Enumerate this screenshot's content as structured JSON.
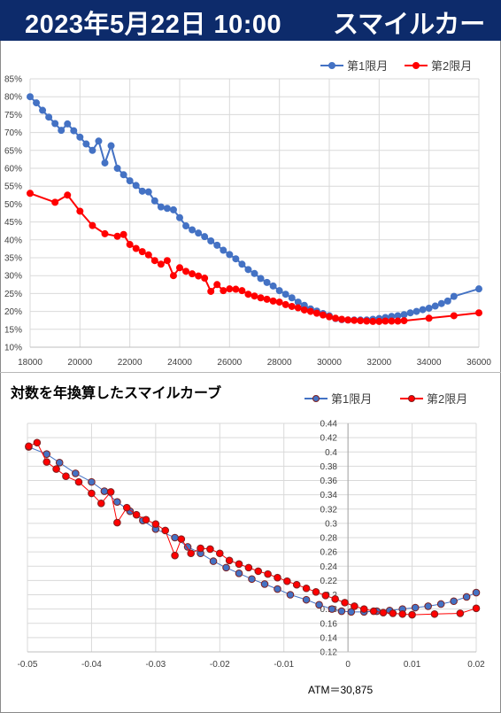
{
  "header": {
    "date_text": "2023年5月22日 10:00",
    "title_text": "スマイルカーブ",
    "bg_color": "#0d2b6b"
  },
  "chart2_title": "対数を年換算したスマイルカーブ",
  "atm_text": "ATM＝30,875",
  "chart_data": [
    {
      "type": "line",
      "title": "",
      "xlabel": "",
      "ylabel": "",
      "xlim": [
        18000,
        36000
      ],
      "ylim": [
        0.1,
        0.85
      ],
      "x_ticks": [
        18000,
        20000,
        22000,
        24000,
        26000,
        28000,
        30000,
        32000,
        34000,
        36000
      ],
      "y_ticks": [
        0.1,
        0.15,
        0.2,
        0.25,
        0.3,
        0.35,
        0.4,
        0.45,
        0.5,
        0.55,
        0.6,
        0.65,
        0.7,
        0.75,
        0.8,
        0.85
      ],
      "x_tick_labels": [
        "18000",
        "20000",
        "22000",
        "24000",
        "26000",
        "28000",
        "30000",
        "32000",
        "34000",
        "36000"
      ],
      "y_tick_labels": [
        "10%",
        "15%",
        "20%",
        "25%",
        "30%",
        "35%",
        "40%",
        "45%",
        "50%",
        "55%",
        "60%",
        "65%",
        "70%",
        "75%",
        "80%",
        "85%"
      ],
      "grid": true,
      "legend_position": "top-right",
      "series": [
        {
          "name": "第1限月",
          "color": "#4472c4",
          "x": [
            18000,
            18250,
            18500,
            18750,
            19000,
            19250,
            19500,
            19750,
            20000,
            20250,
            20500,
            20750,
            21000,
            21250,
            21500,
            21750,
            22000,
            22250,
            22500,
            22750,
            23000,
            23250,
            23500,
            23750,
            24000,
            24250,
            24500,
            24750,
            25000,
            25250,
            25500,
            25750,
            26000,
            26250,
            26500,
            26750,
            27000,
            27250,
            27500,
            27750,
            28000,
            28250,
            28500,
            28750,
            29000,
            29250,
            29500,
            29750,
            30000,
            30250,
            30500,
            30750,
            31000,
            31250,
            31500,
            31750,
            32000,
            32250,
            32500,
            32750,
            33000,
            33250,
            33500,
            33750,
            34000,
            34250,
            34500,
            34750,
            35000,
            36000
          ],
          "y": [
            0.8,
            0.783,
            0.762,
            0.743,
            0.725,
            0.706,
            0.724,
            0.705,
            0.687,
            0.668,
            0.65,
            0.676,
            0.615,
            0.663,
            0.6,
            0.582,
            0.565,
            0.552,
            0.536,
            0.534,
            0.509,
            0.492,
            0.488,
            0.484,
            0.462,
            0.439,
            0.428,
            0.419,
            0.409,
            0.397,
            0.385,
            0.371,
            0.359,
            0.347,
            0.332,
            0.317,
            0.306,
            0.292,
            0.281,
            0.271,
            0.258,
            0.248,
            0.238,
            0.226,
            0.217,
            0.207,
            0.201,
            0.194,
            0.188,
            0.18,
            0.177,
            0.176,
            0.176,
            0.176,
            0.176,
            0.178,
            0.18,
            0.183,
            0.186,
            0.188,
            0.191,
            0.196,
            0.2,
            0.205,
            0.209,
            0.215,
            0.222,
            0.229,
            0.242,
            0.263
          ]
        },
        {
          "name": "第2限月",
          "color": "#ff0000",
          "x": [
            18000,
            19000,
            19500,
            20000,
            20500,
            21000,
            21500,
            21750,
            22000,
            22250,
            22500,
            22750,
            23000,
            23250,
            23500,
            23750,
            24000,
            24250,
            24500,
            24750,
            25000,
            25250,
            25500,
            25750,
            26000,
            26250,
            26500,
            26750,
            27000,
            27250,
            27500,
            27750,
            28000,
            28250,
            28500,
            28750,
            29000,
            29250,
            29500,
            29750,
            30000,
            30250,
            30500,
            30750,
            31000,
            31250,
            31500,
            31750,
            32000,
            32250,
            32500,
            32750,
            33000,
            34000,
            35000,
            36000
          ],
          "y": [
            0.53,
            0.505,
            0.525,
            0.48,
            0.44,
            0.417,
            0.41,
            0.415,
            0.387,
            0.376,
            0.367,
            0.358,
            0.342,
            0.332,
            0.342,
            0.3,
            0.322,
            0.312,
            0.305,
            0.299,
            0.293,
            0.256,
            0.275,
            0.258,
            0.263,
            0.262,
            0.258,
            0.248,
            0.243,
            0.238,
            0.234,
            0.229,
            0.226,
            0.219,
            0.214,
            0.21,
            0.204,
            0.2,
            0.195,
            0.19,
            0.185,
            0.181,
            0.178,
            0.176,
            0.175,
            0.174,
            0.173,
            0.172,
            0.172,
            0.173,
            0.173,
            0.173,
            0.174,
            0.181,
            0.188,
            0.196
          ]
        }
      ]
    },
    {
      "type": "line",
      "title": "対数を年換算したスマイルカーブ",
      "xlabel": "",
      "ylabel": "",
      "xlim": [
        -0.05,
        0.02
      ],
      "ylim": [
        0.12,
        0.44
      ],
      "x_ticks": [
        -0.05,
        -0.04,
        -0.03,
        -0.02,
        -0.01,
        0,
        0.01,
        0.02
      ],
      "y_ticks": [
        0.12,
        0.14,
        0.16,
        0.18,
        0.2,
        0.22,
        0.24,
        0.26,
        0.28,
        0.3,
        0.32,
        0.34,
        0.36,
        0.38,
        0.4,
        0.42,
        0.44
      ],
      "x_tick_labels": [
        "-0.05",
        "-0.04",
        "-0.03",
        "-0.02",
        "-0.01",
        "0",
        "0.01",
        "0.02"
      ],
      "y_tick_labels": [
        "0.12",
        "0.14",
        "0.16",
        "0.18",
        "0.2",
        "0.22",
        "0.24",
        "0.26",
        "0.28",
        "0.3",
        "0.32",
        "0.34",
        "0.36",
        "0.38",
        "0.4",
        "0.42",
        "0.44"
      ],
      "grid": true,
      "legend_position": "top-right",
      "series": [
        {
          "name": "第1限月",
          "color": "#4472c4",
          "x": [
            -0.0498,
            -0.047,
            -0.045,
            -0.0425,
            -0.04,
            -0.038,
            -0.036,
            -0.034,
            -0.032,
            -0.03,
            -0.027,
            -0.025,
            -0.023,
            -0.021,
            -0.019,
            -0.017,
            -0.015,
            -0.013,
            -0.011,
            -0.009,
            -0.0065,
            -0.0045,
            -0.0025,
            -0.001,
            0.0005,
            0.0025,
            0.0045,
            0.0065,
            0.0085,
            0.0105,
            0.0125,
            0.0145,
            0.0165,
            0.0185,
            0.02
          ],
          "y": [
            0.407,
            0.397,
            0.385,
            0.37,
            0.358,
            0.345,
            0.33,
            0.317,
            0.304,
            0.292,
            0.28,
            0.267,
            0.258,
            0.247,
            0.238,
            0.23,
            0.222,
            0.215,
            0.208,
            0.2,
            0.193,
            0.186,
            0.18,
            0.177,
            0.176,
            0.176,
            0.177,
            0.178,
            0.18,
            0.182,
            0.184,
            0.187,
            0.191,
            0.197,
            0.203
          ]
        },
        {
          "name": "第2限月",
          "color": "#ff0000",
          "x": [
            -0.0498,
            -0.0485,
            -0.047,
            -0.0455,
            -0.044,
            -0.042,
            -0.04,
            -0.0385,
            -0.037,
            -0.036,
            -0.0345,
            -0.033,
            -0.0315,
            -0.03,
            -0.0285,
            -0.027,
            -0.026,
            -0.0245,
            -0.023,
            -0.0215,
            -0.02,
            -0.0185,
            -0.017,
            -0.0155,
            -0.014,
            -0.0125,
            -0.011,
            -0.0095,
            -0.008,
            -0.0065,
            -0.005,
            -0.0035,
            -0.002,
            -0.0005,
            0.001,
            0.0025,
            0.004,
            0.0055,
            0.007,
            0.0085,
            0.01,
            0.0135,
            0.0175,
            0.02
          ],
          "y": [
            0.408,
            0.413,
            0.386,
            0.376,
            0.366,
            0.358,
            0.342,
            0.328,
            0.344,
            0.301,
            0.322,
            0.312,
            0.305,
            0.299,
            0.29,
            0.255,
            0.278,
            0.258,
            0.265,
            0.264,
            0.258,
            0.248,
            0.243,
            0.238,
            0.233,
            0.229,
            0.224,
            0.219,
            0.214,
            0.209,
            0.204,
            0.199,
            0.194,
            0.189,
            0.184,
            0.18,
            0.177,
            0.175,
            0.174,
            0.173,
            0.172,
            0.173,
            0.174,
            0.181
          ]
        }
      ]
    }
  ]
}
